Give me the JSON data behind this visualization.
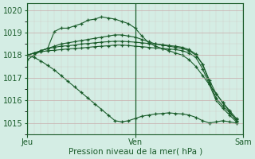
{
  "bg_color": "#d4ede4",
  "grid_color": "#b8ddd0",
  "line_color": "#1a5c2a",
  "xlabel": "Pression niveau de la mer( hPa )",
  "ylim": [
    1014.5,
    1020.3
  ],
  "yticks": [
    1015,
    1016,
    1017,
    1018,
    1019,
    1020
  ],
  "xtick_labels": [
    "Jeu",
    "Ven",
    "Sam"
  ],
  "xtick_positions": [
    0,
    16,
    32
  ],
  "series": [
    [
      1017.8,
      1018.0,
      1018.2,
      1018.3,
      1019.05,
      1019.2,
      1019.2,
      1019.3,
      1019.4,
      1019.55,
      1019.6,
      1019.7,
      1019.65,
      1019.6,
      1019.5,
      1019.4,
      1019.2,
      1018.85,
      1018.55,
      1018.4,
      1018.3,
      1018.2,
      1018.1,
      1018.0,
      1017.8,
      1017.5,
      1017.1,
      1016.7,
      1016.3,
      1015.9,
      1015.5,
      1015.1
    ],
    [
      1018.0,
      1018.1,
      1018.2,
      1018.3,
      1018.4,
      1018.5,
      1018.55,
      1018.6,
      1018.65,
      1018.7,
      1018.75,
      1018.8,
      1018.85,
      1018.9,
      1018.9,
      1018.85,
      1018.8,
      1018.7,
      1018.6,
      1018.5,
      1018.45,
      1018.4,
      1018.35,
      1018.3,
      1018.2,
      1018.0,
      1017.6,
      1016.9,
      1016.3,
      1015.9,
      1015.55,
      1015.2
    ],
    [
      1018.0,
      1018.1,
      1018.2,
      1018.3,
      1018.35,
      1018.4,
      1018.42,
      1018.45,
      1018.5,
      1018.52,
      1018.55,
      1018.58,
      1018.6,
      1018.62,
      1018.62,
      1018.6,
      1018.58,
      1018.55,
      1018.52,
      1018.5,
      1018.47,
      1018.43,
      1018.4,
      1018.35,
      1018.25,
      1018.05,
      1017.6,
      1016.8,
      1016.1,
      1015.75,
      1015.45,
      1015.15
    ],
    [
      1018.0,
      1018.1,
      1018.15,
      1018.2,
      1018.22,
      1018.25,
      1018.28,
      1018.3,
      1018.32,
      1018.35,
      1018.38,
      1018.4,
      1018.42,
      1018.45,
      1018.45,
      1018.43,
      1018.4,
      1018.38,
      1018.35,
      1018.32,
      1018.3,
      1018.28,
      1018.25,
      1018.2,
      1018.1,
      1017.9,
      1017.4,
      1016.7,
      1016.0,
      1015.65,
      1015.35,
      1015.05
    ],
    [
      1018.0,
      1017.9,
      1017.75,
      1017.55,
      1017.35,
      1017.1,
      1016.85,
      1016.6,
      1016.35,
      1016.1,
      1015.85,
      1015.6,
      1015.35,
      1015.1,
      1015.05,
      1015.1,
      1015.2,
      1015.3,
      1015.35,
      1015.4,
      1015.42,
      1015.45,
      1015.42,
      1015.4,
      1015.35,
      1015.25,
      1015.1,
      1015.0,
      1015.05,
      1015.1,
      1015.05,
      1015.0
    ]
  ]
}
